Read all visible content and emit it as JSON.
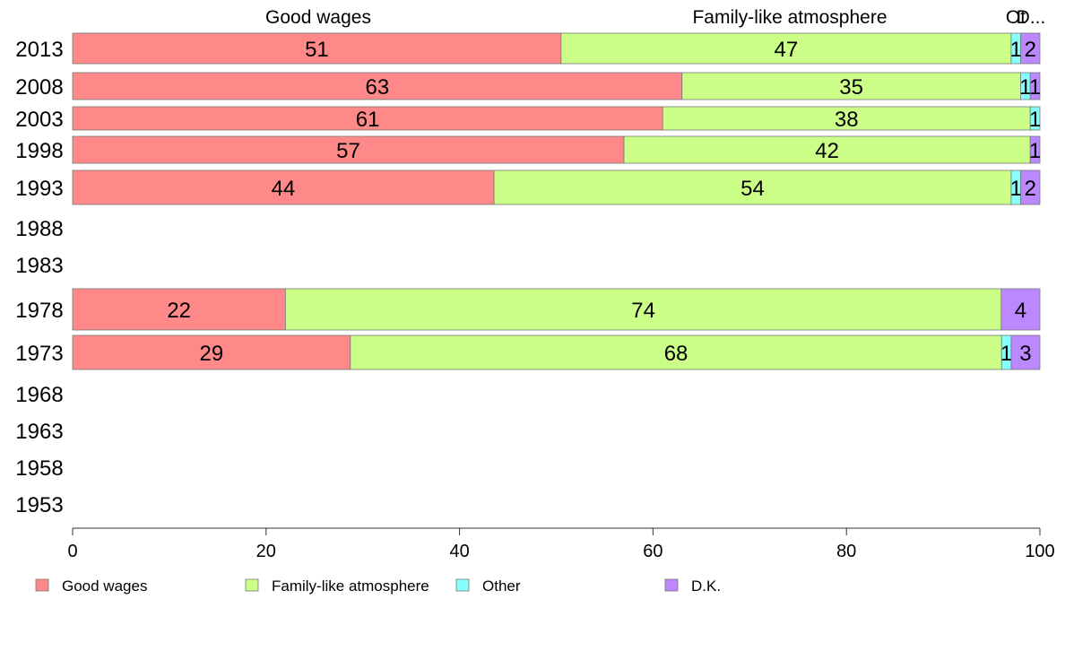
{
  "chart_data": {
    "type": "bar",
    "orientation": "horizontal",
    "stacked": true,
    "categories": [
      "2013",
      "2008",
      "2003",
      "1998",
      "1993",
      "1988",
      "1983",
      "1978",
      "1973",
      "1968",
      "1963",
      "1958",
      "1953"
    ],
    "series": [
      {
        "name": "Good wages",
        "color": "#ff8888",
        "values": [
          51,
          63,
          61,
          57,
          44,
          null,
          null,
          22,
          29,
          null,
          null,
          null,
          null
        ],
        "labels": [
          "51",
          "63",
          "61",
          "57",
          "44",
          "",
          "",
          "22",
          "29",
          "",
          "",
          "",
          ""
        ]
      },
      {
        "name": "Family-like atmosphere",
        "color": "#ccff88",
        "values": [
          47,
          35,
          38,
          42,
          54,
          null,
          null,
          74,
          68,
          null,
          null,
          null,
          null
        ],
        "labels": [
          "47",
          "35",
          "38",
          "42",
          "54",
          "",
          "",
          "74",
          "68",
          "",
          "",
          "",
          ""
        ]
      },
      {
        "name": "Other",
        "color": "#88ffff",
        "values": [
          1,
          1,
          1,
          0,
          1,
          null,
          null,
          0,
          1,
          null,
          null,
          null,
          null
        ],
        "labels": [
          "1",
          "1",
          "1",
          "",
          "1",
          "",
          "",
          "",
          "1",
          "",
          "",
          "",
          ""
        ]
      },
      {
        "name": "D.K.",
        "color": "#bb88ff",
        "values": [
          2,
          1,
          0,
          1,
          2,
          null,
          null,
          4,
          3,
          null,
          null,
          null,
          null
        ],
        "labels": [
          "2",
          "1",
          "",
          "1",
          "2",
          "",
          "",
          "4",
          "3",
          "",
          "",
          "",
          ""
        ]
      }
    ],
    "top_labels": [
      "Good wages",
      "Family-like atmosphere",
      "Ot",
      "D..."
    ],
    "xlim": [
      0,
      100
    ],
    "xticks": [
      "0",
      "20",
      "40",
      "60",
      "80",
      "100"
    ],
    "grid": false,
    "legend_position": "bottom"
  }
}
